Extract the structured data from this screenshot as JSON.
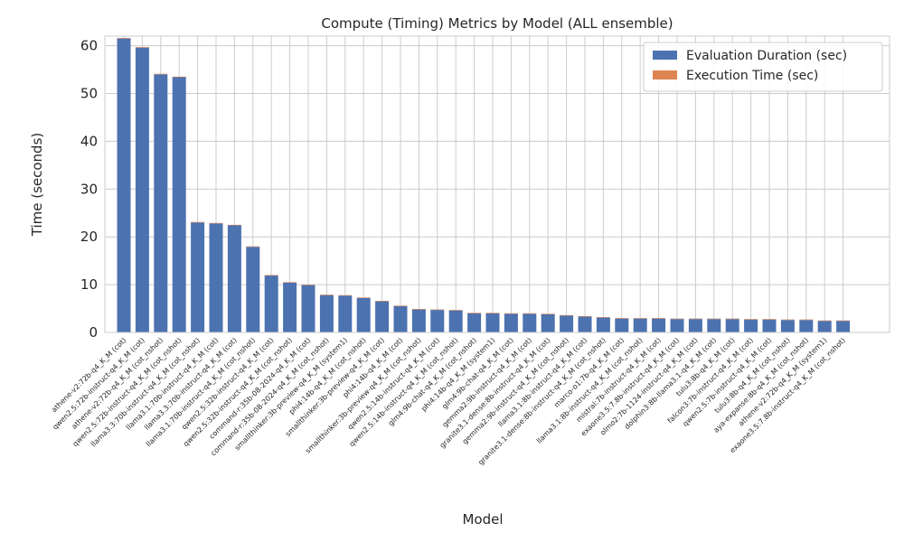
{
  "chart_data": {
    "type": "bar",
    "title": "Compute (Timing) Metrics by Model (ALL ensemble)",
    "xlabel": "Model",
    "ylabel": "Time (seconds)",
    "ylim": [
      0,
      62
    ],
    "yticks": [
      0,
      10,
      20,
      30,
      40,
      50,
      60
    ],
    "grid": true,
    "legend_position": "top-right",
    "categories": [
      "athene-v2:72b-q4_K_M (cot)",
      "qwen2.5:72b-instruct-q4_K_M (cot)",
      "athene-v2:72b-q4_K_M (cot_nshot)",
      "qwen2.5:72b-instruct-q4_K_M (cot_nshot)",
      "llama3.3:70b-instruct-q4_K_M (cot_nshot)",
      "llama3.1:70b-instruct-q4_K_M (cot)",
      "llama3.3:70b-instruct-q4_K_M (cot)",
      "llama3.1:70b-instruct-q4_K_M (cot_nshot)",
      "qwen2.5:32b-instruct-q4_K_M (cot)",
      "qwen2.5:32b-instruct-q4_K_M (cot_nshot)",
      "command-r:35b-08-2024-q4_K_M (cot)",
      "command-r:35b-08-2024-q4_K_M (cot_nshot)",
      "smallthinker:3b-preview-q4_K_M (system1)",
      "phi4:14b-q4_K_M (cot_nshot)",
      "smallthinker:3b-preview-q4_K_M (cot)",
      "phi4:14b-q4_K_M (cot)",
      "smallthinker:3b-preview-q4_K_M (cot_nshot)",
      "qwen2.5:14b-instruct-q4_K_M (cot)",
      "qwen2.5:14b-instruct-q4_K_M (cot_nshot)",
      "glm4:9b-chat-q4_K_M (cot_nshot)",
      "phi4:14b-q4_K_M (system1)",
      "glm4:9b-chat-q4_K_M (cot)",
      "gemma2:9b-instruct-q4_K_M (cot)",
      "granite3.1-dense:8b-instruct-q4_K_M (cot)",
      "gemma2:9b-instruct-q4_K_M (cot_nshot)",
      "llama3.1:8b-instruct-q4_K_M (cot)",
      "granite3.1-dense:8b-instruct-q4_K_M (cot_nshot)",
      "marco-o1:7b-q4_K_M (cot)",
      "llama3.1:8b-instruct-q4_K_M (cot_nshot)",
      "mistral:7b-instruct-q4_K_M (cot)",
      "exaone3.5:7.8b-instruct-q4_K_M (cot)",
      "olmo2:7b-1124-instruct-q4_K_M (cot)",
      "dolphin3:8b-llama3.1-q4_K_M (cot)",
      "tulu3:8b-q4_K_M (cot)",
      "falcon3:7b-instruct-q4_K_M (cot)",
      "qwen2.5:7b-instruct-q4_K_M (cot)",
      "tulu3:8b-q4_K_M (cot_nshot)",
      "aya-expanse:8b-q4_K_M (cot_nshot)",
      "athene-v2:72b-q4_K_M (system1)",
      "exaone3.5:7.8b-instruct-q4_K_M (cot_nshot)"
    ],
    "series": [
      {
        "name": "Evaluation Duration (sec)",
        "color": "#4c72b0",
        "values": [
          61.5,
          59.6,
          54.0,
          53.4,
          23.0,
          22.8,
          22.4,
          17.9,
          11.9,
          10.4,
          9.9,
          7.8,
          7.7,
          7.2,
          6.5,
          5.5,
          4.8,
          4.7,
          4.6,
          4.0,
          4.0,
          3.9,
          3.9,
          3.8,
          3.5,
          3.3,
          3.1,
          2.9,
          2.9,
          2.9,
          2.8,
          2.8,
          2.8,
          2.8,
          2.7,
          2.7,
          2.6,
          2.6,
          2.4,
          2.4
        ]
      },
      {
        "name": "Execution Time (sec)",
        "color": "#dd8452",
        "values": [
          0.02,
          0.02,
          0.02,
          0.02,
          0.02,
          0.02,
          0.02,
          0.02,
          0.02,
          0.02,
          0.02,
          0.02,
          0.02,
          0.02,
          0.02,
          0.02,
          0.02,
          0.02,
          0.02,
          0.02,
          0.02,
          0.02,
          0.02,
          0.02,
          0.02,
          0.02,
          0.02,
          0.02,
          0.02,
          0.02,
          0.02,
          0.02,
          0.02,
          0.02,
          0.02,
          0.02,
          0.02,
          0.02,
          0.02,
          0.02
        ]
      }
    ]
  }
}
